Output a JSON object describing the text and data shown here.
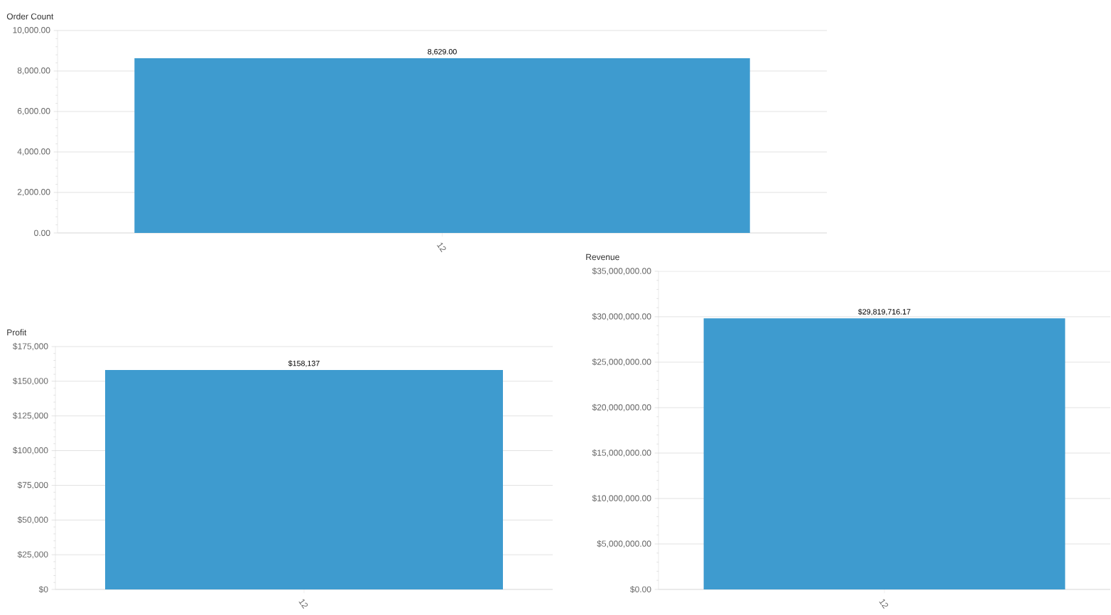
{
  "chart_data": [
    {
      "type": "bar",
      "ylabel": "Order Count",
      "categories": [
        "12"
      ],
      "values": [
        8629
      ],
      "value_labels": [
        "8,629.00"
      ],
      "color": "#3e9bcf",
      "ylim": [
        0,
        10000
      ],
      "grid": "y",
      "yticks": [
        {
          "value": 0,
          "label": "0.00"
        },
        {
          "value": 2000,
          "label": "2,000.00"
        },
        {
          "value": 4000,
          "label": "4,000.00"
        },
        {
          "value": 6000,
          "label": "6,000.00"
        },
        {
          "value": 8000,
          "label": "8,000.00"
        },
        {
          "value": 10000,
          "label": "10,000.00"
        }
      ]
    },
    {
      "type": "bar",
      "ylabel": "Profit",
      "categories": [
        "12"
      ],
      "values": [
        158137
      ],
      "value_labels": [
        "$158,137"
      ],
      "color": "#3e9bcf",
      "ylim": [
        0,
        175000
      ],
      "grid": "y",
      "yticks": [
        {
          "value": 0,
          "label": "$0"
        },
        {
          "value": 25000,
          "label": "$25,000"
        },
        {
          "value": 50000,
          "label": "$50,000"
        },
        {
          "value": 75000,
          "label": "$75,000"
        },
        {
          "value": 100000,
          "label": "$100,000"
        },
        {
          "value": 125000,
          "label": "$125,000"
        },
        {
          "value": 150000,
          "label": "$150,000"
        },
        {
          "value": 175000,
          "label": "$175,000"
        }
      ]
    },
    {
      "type": "bar",
      "ylabel": "Revenue",
      "categories": [
        "12"
      ],
      "values": [
        29819716.17
      ],
      "value_labels": [
        "$29,819,716.17"
      ],
      "color": "#3e9bcf",
      "ylim": [
        0,
        35000000
      ],
      "grid": "y",
      "yticks": [
        {
          "value": 0,
          "label": "$0.00"
        },
        {
          "value": 5000000,
          "label": "$5,000,000.00"
        },
        {
          "value": 10000000,
          "label": "$10,000,000.00"
        },
        {
          "value": 15000000,
          "label": "$15,000,000.00"
        },
        {
          "value": 20000000,
          "label": "$20,000,000.00"
        },
        {
          "value": 25000000,
          "label": "$25,000,000.00"
        },
        {
          "value": 30000000,
          "label": "$30,000,000.00"
        },
        {
          "value": 35000000,
          "label": "$35,000,000.00"
        }
      ]
    }
  ]
}
